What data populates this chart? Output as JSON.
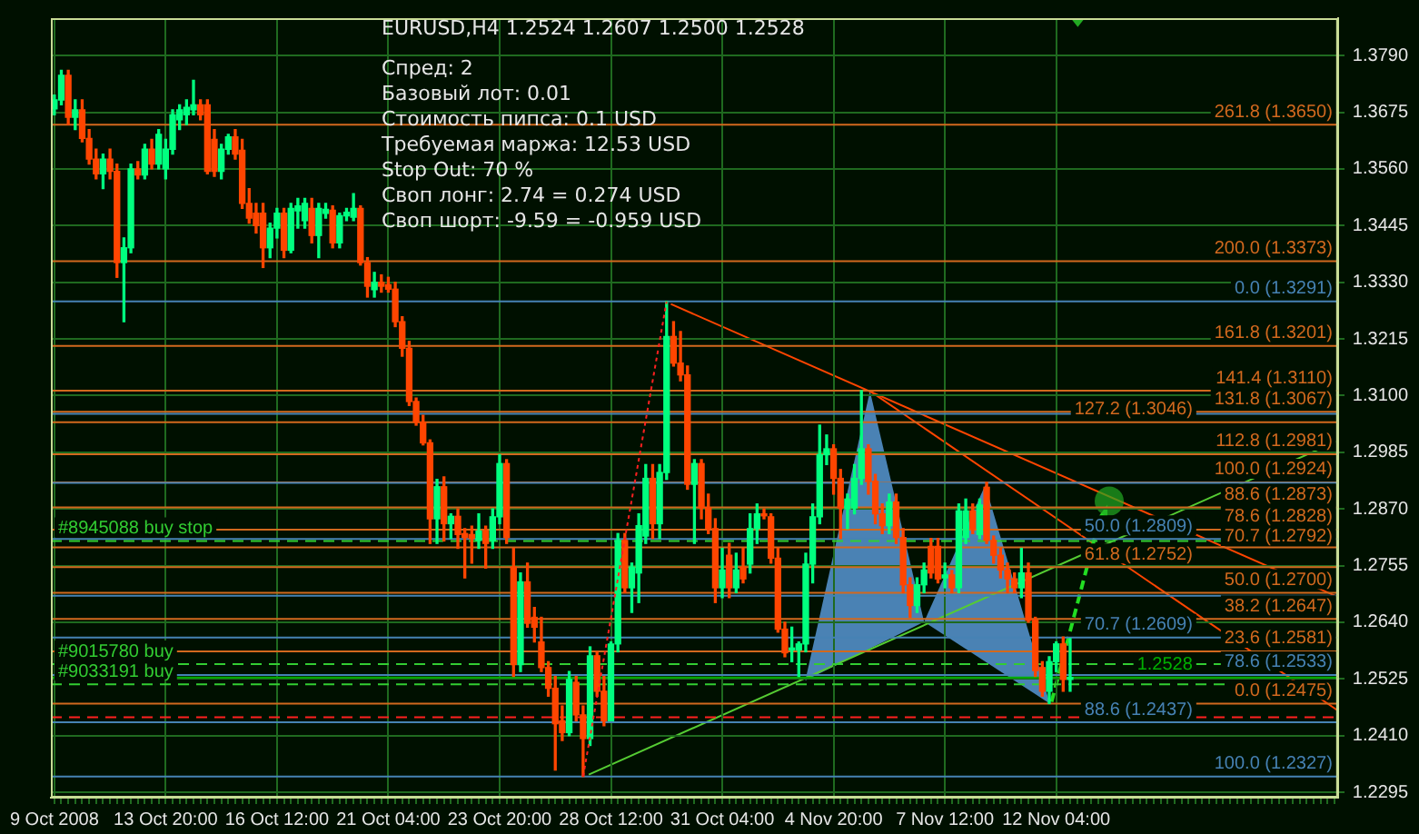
{
  "chart_data": {
    "type": "candlestick",
    "title": "EURUSD,H4  1.2524 1.2607 1.2500 1.2528",
    "annotations": [
      "Спред: 2",
      "Базовый лот: 0.01",
      "Стоимость пипса: 0.1 USD",
      "Требуемая маржа: 12.53 USD",
      "Stop Out: 70 %",
      "Своп лонг: 2.74 = 0.274 USD",
      "Своп шорт: -9.59 = -0.959 USD"
    ],
    "categories": [
      "9 Oct 2008",
      null,
      null,
      null,
      null,
      null,
      null,
      null,
      null,
      null,
      null,
      null,
      null,
      null,
      null,
      null,
      "13 Oct 20:00",
      null,
      null,
      null,
      null,
      null,
      null,
      null,
      null,
      null,
      null,
      null,
      null,
      null,
      null,
      null,
      "16 Oct 12:00",
      null,
      null,
      null,
      null,
      null,
      null,
      null,
      null,
      null,
      null,
      null,
      null,
      null,
      null,
      null,
      "21 Oct 04:00",
      null,
      null,
      null,
      null,
      null,
      null,
      null,
      null,
      null,
      null,
      null,
      null,
      null,
      null,
      null,
      "23 Oct 20:00",
      null,
      null,
      null,
      null,
      null,
      null,
      null,
      null,
      null,
      null,
      null,
      null,
      null,
      null,
      null,
      "28 Oct 12:00",
      null,
      null,
      null,
      null,
      null,
      null,
      null,
      null,
      null,
      null,
      null,
      null,
      null,
      null,
      null,
      "31 Oct 04:00",
      null,
      null,
      null,
      null,
      null,
      null,
      null,
      null,
      null,
      null,
      null,
      null,
      null,
      null,
      null,
      "4 Nov 20:00",
      null,
      null,
      null,
      null,
      null,
      null,
      null,
      null,
      null,
      null,
      null,
      null,
      null,
      null,
      null,
      "7 Nov 12:00",
      null,
      null,
      null,
      null,
      null,
      null,
      null,
      null,
      null,
      null,
      null,
      null,
      null,
      null,
      null,
      "12 Nov 04:00",
      null,
      null,
      null,
      null,
      null,
      null,
      null,
      null,
      null,
      null,
      null,
      null,
      null,
      null,
      null,
      null,
      null,
      null,
      null,
      null,
      null,
      null,
      null,
      null,
      null,
      null,
      null,
      null,
      null,
      null,
      null,
      null,
      null,
      null,
      null,
      null,
      null,
      null,
      null,
      null
    ],
    "ohlc": [
      [
        1.3682,
        1.371,
        1.367,
        1.37
      ],
      [
        1.37,
        1.376,
        1.369,
        1.375
      ],
      [
        1.375,
        1.376,
        1.365,
        1.3665
      ],
      [
        1.3665,
        1.37,
        1.364,
        1.368
      ],
      [
        1.368,
        1.37,
        1.3615,
        1.3622
      ],
      [
        1.3622,
        1.364,
        1.357,
        1.358
      ],
      [
        1.358,
        1.36,
        1.354,
        1.355
      ],
      [
        1.355,
        1.359,
        1.352,
        1.358
      ],
      [
        1.358,
        1.36,
        1.354,
        1.3555
      ],
      [
        1.3555,
        1.357,
        1.334,
        1.337
      ],
      [
        1.337,
        1.342,
        1.325,
        1.34
      ],
      [
        1.34,
        1.357,
        1.339,
        1.356
      ],
      [
        1.356,
        1.3575,
        1.354,
        1.3548
      ],
      [
        1.3548,
        1.361,
        1.354,
        1.36
      ],
      [
        1.36,
        1.362,
        1.356,
        1.357
      ],
      [
        1.357,
        1.364,
        1.356,
        1.363
      ],
      [
        1.356,
        1.362,
        1.354,
        1.36
      ],
      [
        1.36,
        1.368,
        1.359,
        1.367
      ],
      [
        1.366,
        1.369,
        1.364,
        1.368
      ],
      [
        1.367,
        1.37,
        1.365,
        1.3685
      ],
      [
        1.368,
        1.374,
        1.367,
        1.369
      ],
      [
        1.369,
        1.37,
        1.366,
        1.367
      ],
      [
        1.369,
        1.37,
        1.355,
        1.3555
      ],
      [
        1.362,
        1.364,
        1.3545,
        1.3555
      ],
      [
        1.3555,
        1.361,
        1.354,
        1.36
      ],
      [
        1.36,
        1.363,
        1.359,
        1.3625
      ],
      [
        1.3625,
        1.364,
        1.358,
        1.359
      ],
      [
        1.3598,
        1.362,
        1.348,
        1.349
      ],
      [
        1.349,
        1.352,
        1.345,
        1.346
      ],
      [
        1.347,
        1.349,
        1.343,
        1.3445
      ],
      [
        1.347,
        1.349,
        1.336,
        1.34
      ],
      [
        1.34,
        1.345,
        1.338,
        1.344
      ],
      [
        1.344,
        1.348,
        1.342,
        1.347
      ],
      [
        1.347,
        1.348,
        1.338,
        1.3395
      ],
      [
        1.3395,
        1.349,
        1.339,
        1.348
      ],
      [
        1.3475,
        1.35,
        1.344,
        1.3485
      ],
      [
        1.3455,
        1.35,
        1.344,
        1.349
      ],
      [
        1.348,
        1.35,
        1.341,
        1.3425
      ],
      [
        1.3425,
        1.349,
        1.338,
        1.348
      ],
      [
        1.347,
        1.349,
        1.346,
        1.3478
      ],
      [
        1.3476,
        1.3485,
        1.34,
        1.341
      ],
      [
        1.341,
        1.347,
        1.34,
        1.3465
      ],
      [
        1.3465,
        1.348,
        1.3455,
        1.3472
      ],
      [
        1.3462,
        1.351,
        1.3455,
        1.348
      ],
      [
        1.348,
        1.3485,
        1.3365,
        1.337
      ],
      [
        1.337,
        1.338,
        1.33,
        1.3322
      ],
      [
        1.3315,
        1.335,
        1.33,
        1.333
      ],
      [
        1.333,
        1.3345,
        1.331,
        1.3322
      ],
      [
        1.3325,
        1.334,
        1.331,
        1.3316
      ],
      [
        1.3316,
        1.333,
        1.324,
        1.325
      ],
      [
        1.325,
        1.326,
        1.318,
        1.3196
      ],
      [
        1.3196,
        1.321,
        1.308,
        1.3088
      ],
      [
        1.3088,
        1.3095,
        1.304,
        1.3046
      ],
      [
        1.3046,
        1.306,
        1.3,
        1.3004
      ],
      [
        1.3004,
        1.301,
        1.28,
        1.285
      ],
      [
        1.285,
        1.293,
        1.28,
        1.2915
      ],
      [
        1.2915,
        1.2935,
        1.2805,
        1.284
      ],
      [
        1.284,
        1.286,
        1.281,
        1.2855
      ],
      [
        1.2855,
        1.287,
        1.279,
        1.2818
      ],
      [
        1.282,
        1.283,
        1.273,
        1.2812
      ],
      [
        1.2818,
        1.2835,
        1.276,
        1.281
      ],
      [
        1.2806,
        1.286,
        1.279,
        1.2825
      ],
      [
        1.2825,
        1.2835,
        1.275,
        1.28
      ],
      [
        1.2806,
        1.287,
        1.279,
        1.2854
      ],
      [
        1.2854,
        1.298,
        1.284,
        1.2962
      ],
      [
        1.2962,
        1.297,
        1.28,
        1.2812
      ],
      [
        1.2752,
        1.279,
        1.253,
        1.2554
      ],
      [
        1.2554,
        1.274,
        1.254,
        1.2722
      ],
      [
        1.2722,
        1.276,
        1.263,
        1.2638
      ],
      [
        1.265,
        1.267,
        1.26,
        1.263
      ],
      [
        1.26,
        1.265,
        1.254,
        1.2548
      ],
      [
        1.2548,
        1.256,
        1.249,
        1.2506
      ],
      [
        1.2506,
        1.253,
        1.234,
        1.2434
      ],
      [
        1.244,
        1.247,
        1.24,
        1.2416
      ],
      [
        1.2416,
        1.254,
        1.241,
        1.2524
      ],
      [
        1.2518,
        1.253,
        1.244,
        1.2452
      ],
      [
        1.2452,
        1.247,
        1.2327,
        1.2404
      ],
      [
        1.2404,
        1.259,
        1.239,
        1.2572
      ],
      [
        1.2572,
        1.258,
        1.249,
        1.25
      ],
      [
        1.25,
        1.253,
        1.243,
        1.244
      ],
      [
        1.244,
        1.26,
        1.244,
        1.2596
      ],
      [
        1.2596,
        1.282,
        1.258,
        1.2806
      ],
      [
        1.2806,
        1.282,
        1.27,
        1.271
      ],
      [
        1.271,
        1.276,
        1.266,
        1.2752
      ],
      [
        1.274,
        1.286,
        1.268,
        1.2836
      ],
      [
        1.2815,
        1.296,
        1.28,
        1.2932
      ],
      [
        1.2932,
        1.296,
        1.281,
        1.284
      ],
      [
        1.284,
        1.296,
        1.281,
        1.2944
      ],
      [
        1.2944,
        1.3291,
        1.293,
        1.322
      ],
      [
        1.322,
        1.325,
        1.316,
        1.3166
      ],
      [
        1.3166,
        1.323,
        1.313,
        1.3142
      ],
      [
        1.3142,
        1.316,
        1.291,
        1.292
      ],
      [
        1.292,
        1.297,
        1.28,
        1.2962
      ],
      [
        1.2962,
        1.297,
        1.285,
        1.2872
      ],
      [
        1.2872,
        1.29,
        1.282,
        1.283
      ],
      [
        1.283,
        1.285,
        1.268,
        1.271
      ],
      [
        1.271,
        1.279,
        1.269,
        1.2746
      ],
      [
        1.2776,
        1.28,
        1.269,
        1.271
      ],
      [
        1.271,
        1.278,
        1.27,
        1.2746
      ],
      [
        1.2752,
        1.279,
        1.272,
        1.2728
      ],
      [
        1.2758,
        1.286,
        1.274,
        1.283
      ],
      [
        1.283,
        1.288,
        1.28,
        1.286
      ],
      [
        1.286,
        1.287,
        1.285,
        1.2856
      ],
      [
        1.2854,
        1.286,
        1.276,
        1.277
      ],
      [
        1.277,
        1.279,
        1.262,
        1.2626
      ],
      [
        1.2626,
        1.264,
        1.257,
        1.2578
      ],
      [
        1.2584,
        1.263,
        1.256,
        1.2586
      ],
      [
        1.2584,
        1.26,
        1.253,
        1.2596
      ],
      [
        1.2596,
        1.278,
        1.258,
        1.2758
      ],
      [
        1.2758,
        1.288,
        1.272,
        1.2854
      ],
      [
        1.2854,
        1.304,
        1.284,
        1.298
      ],
      [
        1.298,
        1.302,
        1.296,
        1.2992
      ],
      [
        1.2992,
        1.3,
        1.29,
        1.2932
      ],
      [
        1.2932,
        1.295,
        1.281,
        1.2872
      ],
      [
        1.287,
        1.29,
        1.283,
        1.289
      ],
      [
        1.2872,
        1.296,
        1.286,
        1.2932
      ],
      [
        1.2932,
        1.311,
        1.292,
        1.2992
      ],
      [
        1.2992,
        1.3,
        1.29,
        1.2926
      ],
      [
        1.2926,
        1.294,
        1.284,
        1.286
      ],
      [
        1.286,
        1.288,
        1.282,
        1.2836
      ],
      [
        1.2836,
        1.29,
        1.282,
        1.2884
      ],
      [
        1.2884,
        1.29,
        1.28,
        1.2812
      ],
      [
        1.2812,
        1.283,
        1.27,
        1.2716
      ],
      [
        1.2716,
        1.273,
        1.265,
        1.2674
      ],
      [
        1.2674,
        1.273,
        1.266,
        1.2716
      ],
      [
        1.2716,
        1.276,
        1.27,
        1.2746
      ],
      [
        1.2794,
        1.281,
        1.273,
        1.274
      ],
      [
        1.2794,
        1.281,
        1.272,
        1.2728
      ],
      [
        1.273,
        1.276,
        1.271,
        1.2736
      ],
      [
        1.2736,
        1.2745,
        1.27,
        1.271
      ],
      [
        1.271,
        1.288,
        1.27,
        1.2866
      ],
      [
        1.2812,
        1.289,
        1.28,
        1.2866
      ],
      [
        1.2866,
        1.288,
        1.282,
        1.283
      ],
      [
        1.2818,
        1.289,
        1.281,
        1.2878
      ],
      [
        1.2914,
        1.2924,
        1.28,
        1.2806
      ],
      [
        1.2806,
        1.2815,
        1.276,
        1.2776
      ],
      [
        1.2776,
        1.279,
        1.273,
        1.2746
      ],
      [
        1.2746,
        1.276,
        1.27,
        1.2728
      ],
      [
        1.2728,
        1.274,
        1.27,
        1.271
      ],
      [
        1.271,
        1.279,
        1.269,
        1.274
      ],
      [
        1.274,
        1.276,
        1.264,
        1.2644
      ],
      [
        1.2644,
        1.265,
        1.253,
        1.2542
      ],
      [
        1.2548,
        1.256,
        1.249,
        1.25
      ],
      [
        1.25,
        1.257,
        1.2475,
        1.256
      ],
      [
        1.256,
        1.26,
        1.254,
        1.2596
      ],
      [
        1.2596,
        1.261,
        1.25,
        1.2524
      ],
      [
        1.2524,
        1.2607,
        1.25,
        1.2528
      ],
      null,
      null,
      null,
      null,
      null,
      null,
      null,
      null,
      null,
      null,
      null,
      null,
      null,
      null,
      null,
      null,
      null,
      null,
      null,
      null,
      null,
      null,
      null,
      null,
      null,
      null,
      null,
      null,
      null,
      null,
      null,
      null,
      null,
      null,
      null,
      null,
      null,
      null
    ],
    "series": [
      {
        "type": "line",
        "color": "#ff2020",
        "line_style": "dotted",
        "values": [
          null,
          null,
          null,
          null,
          null,
          null,
          null,
          null,
          null,
          null,
          null,
          null,
          null,
          null,
          null,
          null,
          null,
          null,
          null,
          null,
          null,
          null,
          null,
          null,
          null,
          null,
          null,
          null,
          null,
          null,
          null,
          null,
          null,
          null,
          null,
          null,
          null,
          null,
          null,
          null,
          null,
          null,
          null,
          null,
          null,
          null,
          null,
          null,
          null,
          null,
          null,
          null,
          null,
          null,
          null,
          null,
          null,
          null,
          null,
          null,
          null,
          null,
          null,
          null,
          null,
          null,
          null,
          null,
          null,
          null,
          null,
          null,
          null,
          null,
          null,
          null,
          1.2327,
          null,
          null,
          null,
          null,
          null,
          null,
          null,
          null,
          null,
          null,
          null,
          1.3291,
          null,
          null,
          null,
          null,
          null,
          null,
          null,
          null,
          null,
          null,
          null,
          null,
          null,
          null,
          null,
          null,
          null,
          null,
          null,
          null,
          null,
          null,
          null,
          null,
          null,
          null,
          null,
          null,
          null,
          null,
          null,
          null,
          null,
          null,
          null,
          null,
          null,
          null,
          null,
          null,
          null,
          null,
          null,
          null,
          null,
          null,
          null,
          null,
          null,
          null,
          null,
          null,
          null,
          null,
          null,
          null,
          null,
          null,
          null,
          null,
          null,
          null,
          null,
          null,
          null,
          null,
          null,
          null,
          null,
          null,
          null,
          null,
          null,
          null,
          null,
          null,
          null,
          null,
          null,
          null,
          null,
          null,
          null,
          null,
          null,
          null,
          null,
          null,
          null,
          null,
          null,
          null,
          null,
          null,
          null,
          null
        ]
      }
    ],
    "marker": "none",
    "ylim": [
      1.2284,
      1.3866
    ],
    "yticks": [
      {
        "value": 1.2295,
        "label": "1.2295"
      },
      {
        "value": 1.241,
        "label": "1.2410"
      },
      {
        "value": 1.2525,
        "label": "1.2525"
      },
      {
        "value": 1.264,
        "label": "1.2640"
      },
      {
        "value": 1.2755,
        "label": "1.2755"
      },
      {
        "value": 1.287,
        "label": "1.2870"
      },
      {
        "value": 1.2985,
        "label": "1.2985"
      },
      {
        "value": 1.31,
        "label": "1.3100"
      },
      {
        "value": 1.3215,
        "label": "1.3215"
      },
      {
        "value": 1.333,
        "label": "1.3330"
      },
      {
        "value": 1.3445,
        "label": "1.3445"
      },
      {
        "value": 1.356,
        "label": "1.3560"
      },
      {
        "value": 1.3675,
        "label": "1.3675"
      },
      {
        "value": 1.379,
        "label": "1.3790"
      }
    ],
    "ref_lines": [
      {
        "axis": "y",
        "value": 1.365,
        "label": "261.8 (1.3650)",
        "color": "#d2691e"
      },
      {
        "axis": "y",
        "value": 1.3373,
        "label": "200.0 (1.3373)",
        "color": "#d2691e"
      },
      {
        "axis": "y",
        "value": 1.3291,
        "label": "0.0 (1.3291)",
        "color": "#4682b4"
      },
      {
        "axis": "y",
        "value": 1.3201,
        "label": "161.8 (1.3201)",
        "color": "#d2691e"
      },
      {
        "axis": "y",
        "value": 1.311,
        "label": "141.4 (1.3110)",
        "color": "#d2691e"
      },
      {
        "axis": "y",
        "value": 1.3067,
        "label": "131.8 (1.3067)",
        "color": "#d2691e"
      },
      {
        "axis": "y",
        "value": 1.3063,
        "label": null,
        "color": "#4682b4"
      },
      {
        "axis": "y",
        "value": 1.3046,
        "label": "127.2 (1.3046)",
        "color": "#d2691e"
      },
      {
        "axis": "y",
        "value": 1.2981,
        "label": "112.8 (1.2981)",
        "color": "#d2691e"
      },
      {
        "axis": "y",
        "value": 1.2924,
        "label": "100.0 (1.2924)",
        "color": "#d2691e"
      },
      {
        "axis": "y",
        "value": 1.2923,
        "label": null,
        "color": "#4682b4"
      },
      {
        "axis": "y",
        "value": 1.2873,
        "label": "88.6 (1.2873)",
        "color": "#d2691e"
      },
      {
        "axis": "y",
        "value": 1.2828,
        "label": "78.6 (1.2828)",
        "color": "#d2691e"
      },
      {
        "axis": "y",
        "value": 1.2809,
        "label": "50.0 (1.2809)",
        "color": "#4682b4"
      },
      {
        "axis": "y",
        "value": 1.2805,
        "label": "#8945088 buy stop",
        "color": "#32cd32",
        "line_style": "dashed"
      },
      {
        "axis": "y",
        "value": 1.2792,
        "label": "70.7 (1.2792)",
        "color": "#d2691e"
      },
      {
        "axis": "y",
        "value": 1.2752,
        "label": "61.8 (1.2752)",
        "color": "#d2691e"
      },
      {
        "axis": "y",
        "value": 1.27,
        "label": "50.0 (1.2700)",
        "color": "#d2691e"
      },
      {
        "axis": "y",
        "value": 1.2694,
        "label": null,
        "color": "#4682b4"
      },
      {
        "axis": "y",
        "value": 1.2647,
        "label": "38.2 (1.2647)",
        "color": "#d2691e"
      },
      {
        "axis": "y",
        "value": 1.2609,
        "label": "70.7 (1.2609)",
        "color": "#4682b4"
      },
      {
        "axis": "y",
        "value": 1.2581,
        "label": "23.6 (1.2581)",
        "color": "#d2691e"
      },
      {
        "axis": "y",
        "value": 1.2555,
        "label": "#9015780 buy",
        "color": "#32cd32",
        "line_style": "dashed"
      },
      {
        "axis": "y",
        "value": 1.2533,
        "label": "78.6 (1.2533)",
        "color": "#4682b4"
      },
      {
        "axis": "y",
        "value": 1.2528,
        "label": "1.2528",
        "color": "#00b000"
      },
      {
        "axis": "y",
        "value": 1.2514,
        "label": "#9033191 buy",
        "color": "#32cd32",
        "line_style": "dashed"
      },
      {
        "axis": "y",
        "value": 1.2475,
        "label": "0.0 (1.2475)",
        "color": "#d2691e"
      },
      {
        "axis": "y",
        "value": 1.2447,
        "label": null,
        "color": "#ff2020",
        "line_style": "dashed"
      },
      {
        "axis": "y",
        "value": 1.2437,
        "label": "88.6 (1.2437)",
        "color": "#4682b4"
      },
      {
        "axis": "y",
        "value": 1.2327,
        "label": "100.0 (1.2327)",
        "color": "#4682b4"
      }
    ],
    "grid": true,
    "legend": false
  }
}
